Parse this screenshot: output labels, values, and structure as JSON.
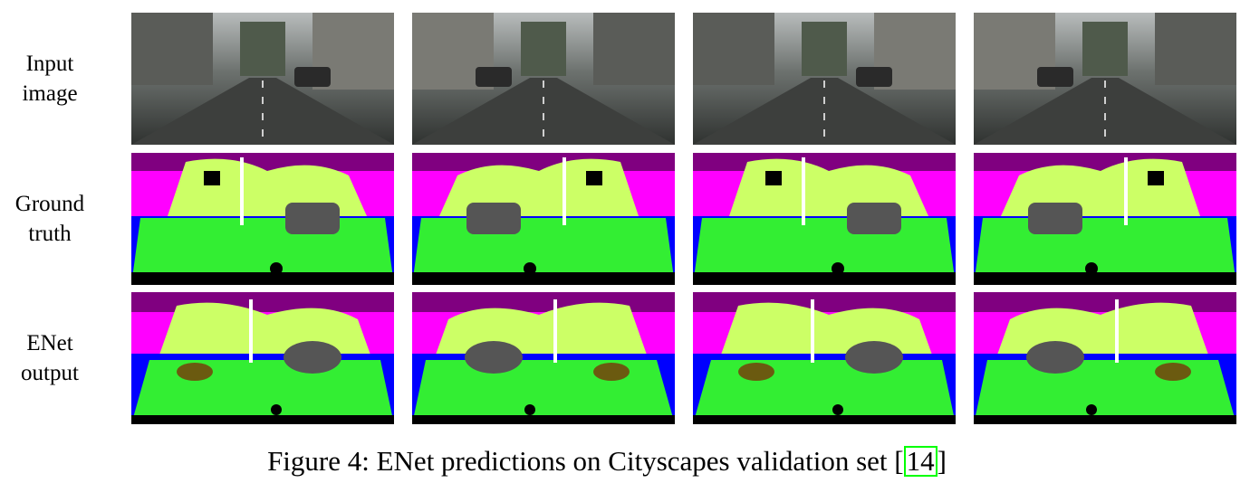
{
  "figure": {
    "row_labels": [
      {
        "lines": [
          "Input",
          "image"
        ]
      },
      {
        "lines": [
          "Ground",
          "truth"
        ]
      },
      {
        "lines": [
          "ENet",
          "output"
        ]
      }
    ],
    "caption": {
      "prefix": "Figure 4: ENet predictions on Cityscapes validation set [",
      "citation": "14",
      "suffix": "]"
    }
  }
}
